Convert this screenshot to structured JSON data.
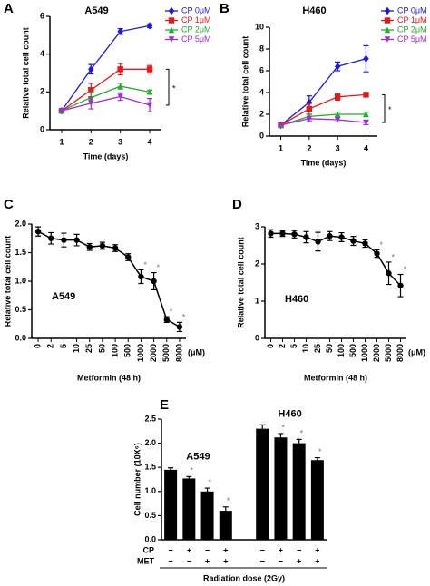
{
  "chart_data": [
    {
      "type": "line",
      "panel": "A",
      "title": "A549",
      "xlabel": "Time (days)",
      "ylabel": "Relative total cell count",
      "xlim": [
        0.6,
        4.4
      ],
      "xticks": [
        1,
        2,
        3,
        4
      ],
      "ylim": [
        0,
        6
      ],
      "yticks": [
        0,
        2,
        4,
        6
      ],
      "annotation": "*",
      "series": [
        {
          "name": "CP 0μM",
          "color": "#1a1adb",
          "marker": "diamond",
          "x": [
            1,
            2,
            3,
            4
          ],
          "values": [
            1,
            3.2,
            5.2,
            5.5
          ],
          "errors": [
            0.05,
            0.25,
            0.15,
            0.1
          ]
        },
        {
          "name": "CP 1μM",
          "color": "#e8171a",
          "marker": "square",
          "x": [
            1,
            2,
            3,
            4
          ],
          "values": [
            1,
            2.1,
            3.2,
            3.2
          ],
          "errors": [
            0.05,
            0.35,
            0.3,
            0.2
          ]
        },
        {
          "name": "CP 2μM",
          "color": "#1fae2a",
          "marker": "triangle",
          "x": [
            1,
            2,
            3,
            4
          ],
          "values": [
            1,
            1.7,
            2.3,
            2.0
          ],
          "errors": [
            0.05,
            0.3,
            0.15,
            0.1
          ]
        },
        {
          "name": "CP 5μM",
          "color": "#a02cd6",
          "marker": "invtriangle",
          "x": [
            1,
            2,
            3,
            4
          ],
          "values": [
            1,
            1.4,
            1.75,
            1.3
          ],
          "errors": [
            0.05,
            0.3,
            0.2,
            0.35
          ]
        }
      ]
    },
    {
      "type": "line",
      "panel": "B",
      "title": "H460",
      "xlabel": "Time (days)",
      "ylabel": "Relative total cell count",
      "xlim": [
        0.6,
        4.4
      ],
      "xticks": [
        1,
        2,
        3,
        4
      ],
      "ylim": [
        0,
        10
      ],
      "yticks": [
        0,
        2,
        4,
        6,
        8,
        10
      ],
      "annotation": "*",
      "series": [
        {
          "name": "CP 0μM",
          "color": "#1a1adb",
          "marker": "diamond",
          "x": [
            1,
            2,
            3,
            4
          ],
          "values": [
            1,
            3.1,
            6.4,
            7.1
          ],
          "errors": [
            0.05,
            0.6,
            0.4,
            1.2
          ]
        },
        {
          "name": "CP 1μM",
          "color": "#e8171a",
          "marker": "square",
          "x": [
            1,
            2,
            3,
            4
          ],
          "values": [
            1,
            2.5,
            3.6,
            3.8
          ],
          "errors": [
            0.05,
            0.5,
            0.3,
            0.2
          ]
        },
        {
          "name": "CP 2μM",
          "color": "#1fae2a",
          "marker": "triangle",
          "x": [
            1,
            2,
            3,
            4
          ],
          "values": [
            1,
            1.8,
            2.0,
            2.0
          ],
          "errors": [
            0.05,
            0.2,
            0.2,
            0.2
          ]
        },
        {
          "name": "CP 5μM",
          "color": "#a02cd6",
          "marker": "invtriangle",
          "x": [
            1,
            2,
            3,
            4
          ],
          "values": [
            1,
            1.6,
            1.5,
            1.25
          ],
          "errors": [
            0.05,
            0.2,
            0.2,
            0.2
          ]
        }
      ]
    },
    {
      "type": "catline",
      "panel": "C",
      "title": "A549",
      "xlabel": "Metformin (48 h)",
      "xunit": "(μM)",
      "ylabel": "Relative total cell count",
      "categories": [
        "0",
        "2",
        "5",
        "10",
        "25",
        "50",
        "100",
        "500",
        "1000",
        "2000",
        "5000",
        "8000"
      ],
      "values": [
        1.87,
        1.75,
        1.72,
        1.72,
        1.6,
        1.62,
        1.58,
        1.42,
        1.08,
        1.0,
        0.33,
        0.2
      ],
      "errors": [
        0.08,
        0.1,
        0.12,
        0.1,
        0.06,
        0.06,
        0.06,
        0.06,
        0.12,
        0.15,
        0.05,
        0.08
      ],
      "ylim": [
        0,
        2
      ],
      "yticks": [
        {
          "value": 0,
          "label": "0.0"
        },
        {
          "value": 0.5,
          "label": "0.5"
        },
        {
          "value": 1,
          "label": "1.0"
        },
        {
          "value": 1.5,
          "label": "1.5"
        },
        {
          "value": 2,
          "label": "2.0"
        }
      ],
      "annotation": "*",
      "annotated": [
        8,
        9,
        10,
        11
      ]
    },
    {
      "type": "catline",
      "panel": "D",
      "title": "H460",
      "xlabel": "Metformin (48 h)",
      "xunit": "(μM)",
      "ylabel": "Relative total cell count",
      "categories": [
        "0",
        "2",
        "5",
        "10",
        "25",
        "50",
        "100",
        "500",
        "1000",
        "2000",
        "5000",
        "8000"
      ],
      "values": [
        2.82,
        2.82,
        2.8,
        2.72,
        2.6,
        2.75,
        2.72,
        2.62,
        2.55,
        2.28,
        1.75,
        1.42
      ],
      "errors": [
        0.1,
        0.08,
        0.1,
        0.15,
        0.25,
        0.12,
        0.12,
        0.12,
        0.1,
        0.1,
        0.3,
        0.3
      ],
      "ylim": [
        0,
        3
      ],
      "yticks": [
        0,
        1,
        2,
        3
      ],
      "annotation": "*",
      "annotated": [
        9,
        10,
        11
      ]
    },
    {
      "type": "bar",
      "panel": "E",
      "ylabel": "Cell number (10X⁶)",
      "xlabel": "Radiation dose (2Gy)",
      "color": "#000000",
      "groups": [
        "A549",
        "H460"
      ],
      "values": [
        1.45,
        1.27,
        1.0,
        0.6,
        2.3,
        2.12,
        2.0,
        1.65
      ],
      "errors": [
        0.04,
        0.04,
        0.07,
        0.08,
        0.08,
        0.08,
        0.08,
        0.05
      ],
      "ylim": [
        0,
        2.5
      ],
      "yticks": [
        {
          "value": 0,
          "label": "0.0"
        },
        {
          "value": 0.5,
          "label": "0.5"
        },
        {
          "value": 1,
          "label": "1.0"
        },
        {
          "value": 1.5,
          "label": "1.5"
        },
        {
          "value": 2,
          "label": "2.0"
        },
        {
          "value": 2.5,
          "label": "2.5"
        }
      ],
      "rows": [
        {
          "name": "CP",
          "signs": [
            "−",
            "+",
            "−",
            "+",
            "−",
            "+",
            "−",
            "+"
          ]
        },
        {
          "name": "MET",
          "signs": [
            "−",
            "−",
            "+",
            "+",
            "−",
            "−",
            "+",
            "+"
          ]
        }
      ],
      "annotation": "*",
      "annotated": [
        1,
        2,
        3,
        5,
        6,
        7
      ]
    }
  ]
}
